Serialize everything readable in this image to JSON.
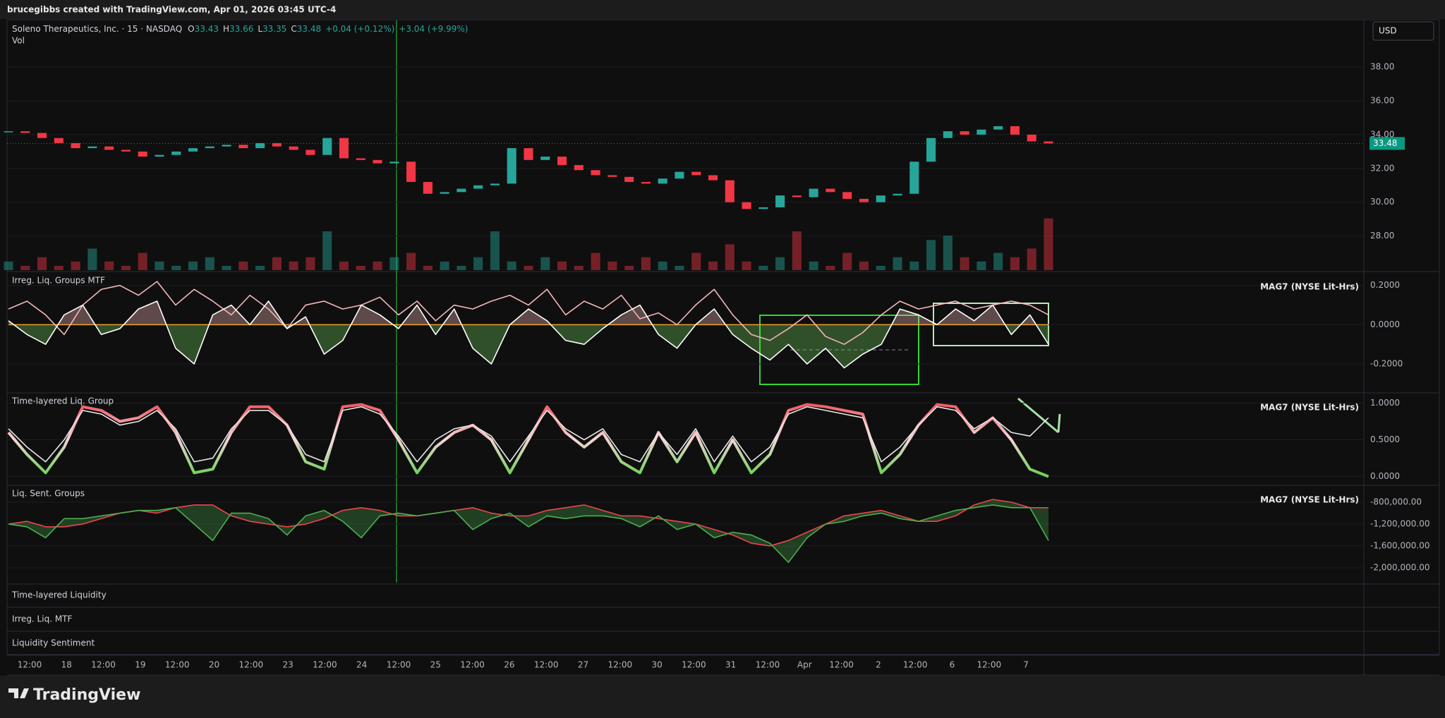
{
  "top_bar": {
    "text": "brucegibbs created with TradingView.com, Apr 01, 2026 03:45 UTC-4"
  },
  "header": {
    "symbol": "Soleno Therapeutics, Inc. · 15 · NASDAQ",
    "o_label": "O",
    "open": "33.43",
    "h_label": "H",
    "high": "33.66",
    "l_label": "L",
    "low": "33.35",
    "c_label": "C",
    "close": "33.48",
    "change": "+0.04 (+0.12%)",
    "change_session": "+3.04 (+9.99%)",
    "volume_label": "Vol"
  },
  "currency_button": "USD",
  "chart_data": [
    {
      "type": "candlestick",
      "up_color": "#26a69a",
      "down_color": "#f23645",
      "close": [
        34.2,
        34.1,
        33.8,
        33.5,
        33.2,
        33.3,
        33.1,
        33.0,
        32.7,
        32.8,
        33.0,
        33.2,
        33.3,
        33.4,
        33.2,
        33.5,
        33.3,
        33.1,
        32.8,
        33.8,
        32.6,
        32.5,
        32.3,
        32.4,
        31.2,
        30.5,
        30.6,
        30.8,
        31.0,
        31.1,
        33.2,
        32.5,
        32.7,
        32.2,
        31.9,
        31.6,
        31.5,
        31.2,
        31.1,
        31.4,
        31.8,
        31.6,
        31.3,
        30.0,
        29.6,
        29.7,
        30.4,
        30.3,
        30.8,
        30.6,
        30.2,
        30.0,
        30.4,
        30.5,
        32.4,
        33.8,
        34.2,
        34.0,
        34.3,
        34.5,
        34.0,
        33.6,
        33.48
      ],
      "volume": [
        2,
        1,
        3,
        1,
        2,
        5,
        2,
        1,
        4,
        2,
        1,
        2,
        3,
        1,
        2,
        1,
        3,
        2,
        3,
        9,
        2,
        1,
        2,
        3,
        4,
        1,
        2,
        1,
        3,
        9,
        2,
        1,
        3,
        2,
        1,
        4,
        2,
        1,
        3,
        2,
        1,
        4,
        2,
        6,
        2,
        1,
        3,
        9,
        2,
        1,
        4,
        2,
        1,
        3,
        2,
        7,
        8,
        3,
        2,
        4,
        3,
        5,
        12
      ],
      "volume_lim": [
        0,
        18
      ],
      "last": 33.48,
      "last_color": "#089981",
      "ylim": [
        25.98,
        40.76
      ],
      "yticks": [
        {
          "value": 28,
          "label": "28.00"
        },
        {
          "value": 30,
          "label": "30.00"
        },
        {
          "value": 32,
          "label": "32.00"
        },
        {
          "value": 34,
          "label": "34.00"
        },
        {
          "value": 36,
          "label": "36.00"
        },
        {
          "value": 38,
          "label": "38.00"
        }
      ]
    },
    {
      "type": "line",
      "title": "Irreg. Liq. Groups MTF",
      "legend": "MAG7 (NYSE Lit-Hrs)",
      "zero_line_color": "#f0a030",
      "series": [
        {
          "color": "#f4b6b6",
          "values": [
            0.08,
            0.12,
            0.05,
            -0.05,
            0.1,
            0.18,
            0.2,
            0.15,
            0.22,
            0.1,
            0.18,
            0.12,
            0.05,
            0.15,
            0.08,
            -0.02,
            0.1,
            0.12,
            0.08,
            0.1,
            0.14,
            0.05,
            0.12,
            0.02,
            0.1,
            0.08,
            0.12,
            0.15,
            0.1,
            0.18,
            0.05,
            0.12,
            0.08,
            0.15,
            0.03,
            0.06,
            0.0,
            0.1,
            0.18,
            0.05,
            -0.05,
            -0.08,
            -0.02,
            0.05,
            -0.06,
            -0.1,
            -0.04,
            0.05,
            0.12,
            0.08,
            0.1,
            0.12,
            0.08,
            0.1,
            0.12,
            0.1,
            0.05
          ]
        },
        {
          "color": "#ffffff",
          "fill": "zero",
          "values": [
            0.02,
            -0.05,
            -0.1,
            0.05,
            0.1,
            -0.05,
            -0.02,
            0.08,
            0.12,
            -0.12,
            -0.2,
            0.05,
            0.1,
            0.0,
            0.12,
            -0.02,
            0.04,
            -0.15,
            -0.08,
            0.1,
            0.05,
            -0.02,
            0.1,
            -0.05,
            0.08,
            -0.12,
            -0.2,
            0.0,
            0.08,
            0.02,
            -0.08,
            -0.1,
            -0.02,
            0.05,
            0.1,
            -0.05,
            -0.12,
            0.0,
            0.08,
            -0.05,
            -0.12,
            -0.18,
            -0.1,
            -0.2,
            -0.12,
            -0.22,
            -0.15,
            -0.1,
            0.08,
            0.05,
            0.0,
            0.08,
            0.02,
            0.1,
            -0.05,
            0.05,
            -0.1
          ]
        }
      ],
      "ylim": [
        -0.34,
        0.26
      ],
      "yticks": [
        {
          "value": -0.2,
          "label": "-0.2000"
        },
        {
          "value": 0,
          "label": "0.0000"
        },
        {
          "value": 0.2,
          "label": "0.2000"
        }
      ]
    },
    {
      "type": "line",
      "title": "Time-layered Liq. Group",
      "legend": "MAG7 (NYSE Lit-Hrs)",
      "series": [
        {
          "gradient": [
            "#f23645",
            "#f5d5d5",
            "#4cd137"
          ],
          "width": 4,
          "values": [
            0.6,
            0.3,
            0.05,
            0.4,
            0.95,
            0.9,
            0.75,
            0.8,
            0.95,
            0.6,
            0.05,
            0.1,
            0.6,
            0.95,
            0.95,
            0.7,
            0.2,
            0.1,
            0.95,
            0.98,
            0.9,
            0.5,
            0.05,
            0.4,
            0.6,
            0.7,
            0.5,
            0.05,
            0.5,
            0.95,
            0.6,
            0.4,
            0.6,
            0.2,
            0.05,
            0.6,
            0.2,
            0.6,
            0.05,
            0.5,
            0.05,
            0.3,
            0.9,
            0.98,
            0.95,
            0.9,
            0.85,
            0.05,
            0.3,
            0.7,
            0.98,
            0.95,
            0.6,
            0.8,
            0.5,
            0.1,
            0.0
          ]
        },
        {
          "color": "#e8e8e8",
          "values": [
            0.65,
            0.4,
            0.2,
            0.5,
            0.9,
            0.85,
            0.7,
            0.75,
            0.9,
            0.65,
            0.2,
            0.25,
            0.65,
            0.9,
            0.9,
            0.7,
            0.3,
            0.2,
            0.9,
            0.95,
            0.85,
            0.55,
            0.2,
            0.5,
            0.65,
            0.7,
            0.55,
            0.2,
            0.55,
            0.9,
            0.65,
            0.5,
            0.65,
            0.3,
            0.2,
            0.6,
            0.3,
            0.65,
            0.2,
            0.55,
            0.2,
            0.4,
            0.85,
            0.95,
            0.9,
            0.85,
            0.8,
            0.2,
            0.4,
            0.7,
            0.95,
            0.9,
            0.65,
            0.8,
            0.6,
            0.55,
            0.8
          ]
        }
      ],
      "ylim": [
        -0.1,
        1.12
      ],
      "yticks": [
        {
          "value": 0,
          "label": "0.0000"
        },
        {
          "value": 0.5,
          "label": "0.5000"
        },
        {
          "value": 1,
          "label": "1.0000"
        }
      ]
    },
    {
      "type": "line",
      "title": "Liq. Sent. Groups",
      "legend": "MAG7 (NYSE Lit-Hrs)",
      "fill_color": "rgba(76,175,80,0.3)",
      "series": [
        {
          "color": "#f0434f",
          "values": [
            -1200000,
            -1150000,
            -1250000,
            -1250000,
            -1200000,
            -1100000,
            -1000000,
            -950000,
            -1000000,
            -900000,
            -850000,
            -850000,
            -1050000,
            -1150000,
            -1200000,
            -1250000,
            -1200000,
            -1100000,
            -950000,
            -900000,
            -950000,
            -1050000,
            -1050000,
            -1000000,
            -950000,
            -900000,
            -1000000,
            -1050000,
            -1050000,
            -950000,
            -900000,
            -850000,
            -950000,
            -1050000,
            -1050000,
            -1100000,
            -1150000,
            -1200000,
            -1300000,
            -1400000,
            -1550000,
            -1600000,
            -1500000,
            -1350000,
            -1200000,
            -1050000,
            -1000000,
            -950000,
            -1050000,
            -1150000,
            -1150000,
            -1050000,
            -850000,
            -750000,
            -800000,
            -900000,
            -900000
          ]
        },
        {
          "color": "#4caf50",
          "values": [
            -1200000,
            -1250000,
            -1450000,
            -1100000,
            -1100000,
            -1050000,
            -1000000,
            -950000,
            -950000,
            -900000,
            -1200000,
            -1500000,
            -1000000,
            -1000000,
            -1100000,
            -1400000,
            -1050000,
            -950000,
            -1150000,
            -1450000,
            -1050000,
            -1000000,
            -1050000,
            -1000000,
            -950000,
            -1300000,
            -1100000,
            -1000000,
            -1250000,
            -1050000,
            -1100000,
            -1050000,
            -1050000,
            -1100000,
            -1250000,
            -1050000,
            -1300000,
            -1200000,
            -1450000,
            -1350000,
            -1400000,
            -1550000,
            -1900000,
            -1450000,
            -1200000,
            -1150000,
            -1050000,
            -1000000,
            -1100000,
            -1150000,
            -1050000,
            -950000,
            -900000,
            -850000,
            -900000,
            -900000,
            -1500000
          ]
        }
      ],
      "ylim": [
        -2270000,
        -516000
      ],
      "yticks": [
        {
          "value": -2000000,
          "label": "-2,000,000.00"
        },
        {
          "value": -1600000,
          "label": "-1,600,000.00"
        },
        {
          "value": -1200000,
          "label": "-1,200,000.00"
        },
        {
          "value": -800000,
          "label": "-800,000.00"
        }
      ]
    }
  ],
  "collapsed_panes": [
    "Time-layered Liquidity",
    "Irreg. Liq. MTF",
    "Liquidity Sentiment"
  ],
  "time_axis": {
    "labels": [
      "12:00",
      "18",
      "12:00",
      "19",
      "12:00",
      "20",
      "12:00",
      "23",
      "12:00",
      "24",
      "12:00",
      "25",
      "12:00",
      "26",
      "12:00",
      "27",
      "12:00",
      "30",
      "12:00",
      "31",
      "12:00",
      "Apr",
      "12:00",
      "2",
      "12:00",
      "6",
      "12:00",
      "7"
    ]
  },
  "footer": {
    "brand": "TradingView"
  }
}
